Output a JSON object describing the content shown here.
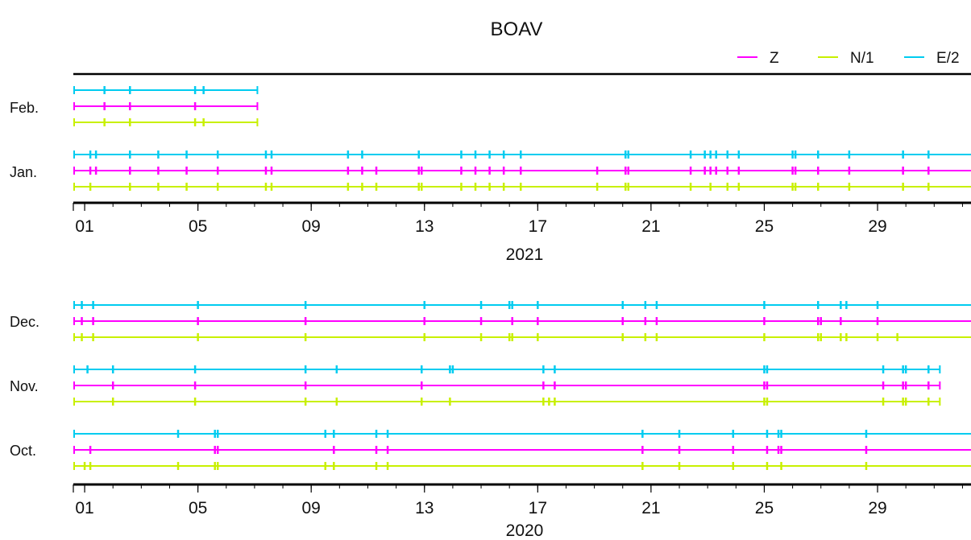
{
  "chart_data": {
    "type": "timeline",
    "title": "BOAV",
    "legend": {
      "placement": "top-right",
      "items": [
        {
          "label": "Z",
          "color": "#ff00ff"
        },
        {
          "label": "N/1",
          "color": "#c8f000"
        },
        {
          "label": "E/2",
          "color": "#00ccf0"
        }
      ]
    },
    "panels": [
      {
        "id": "panel-2021",
        "year_label": "2021",
        "x_ticks": [
          "01",
          "05",
          "09",
          "13",
          "17",
          "21",
          "25",
          "29"
        ],
        "x_tick_days": [
          1,
          5,
          9,
          13,
          17,
          21,
          25,
          29
        ],
        "x_range_days": [
          0.6,
          32.3
        ],
        "months": [
          {
            "label": "Feb.",
            "end_day": 7.1,
            "series": [
              {
                "name": "E/2",
                "color": "#00ccf0",
                "gaps": [
                  1.7,
                  2.6,
                  4.9,
                  5.2
                ]
              },
              {
                "name": "Z",
                "color": "#ff00ff",
                "gaps": [
                  1.7,
                  2.6,
                  4.9
                ]
              },
              {
                "name": "N/1",
                "color": "#c8f000",
                "gaps": [
                  1.7,
                  2.6,
                  4.9,
                  5.2
                ]
              }
            ]
          },
          {
            "label": "Jan.",
            "end_day": 32.3,
            "series": [
              {
                "name": "E/2",
                "color": "#00ccf0",
                "gaps": [
                  1.2,
                  1.4,
                  2.6,
                  3.6,
                  4.6,
                  5.7,
                  7.4,
                  7.6,
                  10.3,
                  10.8,
                  12.8,
                  14.3,
                  14.8,
                  15.3,
                  15.8,
                  16.4,
                  20.1,
                  20.2,
                  22.4,
                  22.9,
                  23.1,
                  23.3,
                  23.7,
                  24.1,
                  26.0,
                  26.1,
                  26.9,
                  28.0,
                  29.9,
                  30.8
                ]
              },
              {
                "name": "Z",
                "color": "#ff00ff",
                "gaps": [
                  1.2,
                  1.4,
                  2.6,
                  3.6,
                  4.6,
                  5.7,
                  7.4,
                  7.6,
                  10.3,
                  10.8,
                  11.3,
                  12.8,
                  12.9,
                  14.3,
                  14.8,
                  15.3,
                  15.8,
                  16.4,
                  19.1,
                  20.1,
                  20.2,
                  22.4,
                  22.9,
                  23.1,
                  23.3,
                  23.7,
                  24.1,
                  26.0,
                  26.1,
                  26.9,
                  28.0,
                  29.9,
                  30.8
                ]
              },
              {
                "name": "N/1",
                "color": "#c8f000",
                "gaps": [
                  1.2,
                  2.6,
                  3.6,
                  4.6,
                  5.7,
                  7.4,
                  7.6,
                  10.3,
                  10.8,
                  11.3,
                  12.8,
                  12.9,
                  14.3,
                  14.8,
                  15.3,
                  15.8,
                  16.4,
                  19.1,
                  20.1,
                  20.2,
                  22.4,
                  23.1,
                  23.7,
                  24.1,
                  26.0,
                  26.1,
                  26.9,
                  28.0,
                  29.9,
                  30.8
                ]
              }
            ]
          }
        ]
      },
      {
        "id": "panel-2020",
        "year_label": "2020",
        "x_ticks": [
          "01",
          "05",
          "09",
          "13",
          "17",
          "21",
          "25",
          "29"
        ],
        "x_tick_days": [
          1,
          5,
          9,
          13,
          17,
          21,
          25,
          29
        ],
        "x_range_days": [
          0.6,
          32.3
        ],
        "months": [
          {
            "label": "Dec.",
            "end_day": 32.3,
            "series": [
              {
                "name": "E/2",
                "color": "#00ccf0",
                "gaps": [
                  0.9,
                  1.3,
                  5.0,
                  8.8,
                  13.0,
                  15.0,
                  16.0,
                  16.1,
                  17.0,
                  20.0,
                  20.8,
                  21.2,
                  25.0,
                  26.9,
                  27.7,
                  27.9,
                  29.0
                ]
              },
              {
                "name": "Z",
                "color": "#ff00ff",
                "gaps": [
                  0.9,
                  1.3,
                  5.0,
                  8.8,
                  13.0,
                  15.0,
                  16.1,
                  17.0,
                  20.0,
                  20.8,
                  21.2,
                  25.0,
                  26.9,
                  27.0,
                  27.7,
                  29.0
                ]
              },
              {
                "name": "N/1",
                "color": "#c8f000",
                "gaps": [
                  0.9,
                  1.3,
                  5.0,
                  8.8,
                  13.0,
                  15.0,
                  16.0,
                  16.1,
                  17.0,
                  20.0,
                  20.8,
                  21.2,
                  25.0,
                  26.9,
                  27.0,
                  27.7,
                  27.9,
                  29.0,
                  29.7
                ]
              }
            ]
          },
          {
            "label": "Nov.",
            "end_day": 31.2,
            "series": [
              {
                "name": "E/2",
                "color": "#00ccf0",
                "gaps": [
                  1.1,
                  2.0,
                  4.9,
                  8.8,
                  9.9,
                  12.9,
                  13.9,
                  14.0,
                  17.2,
                  17.6,
                  25.0,
                  25.1,
                  29.2,
                  29.9,
                  30.0,
                  30.8
                ]
              },
              {
                "name": "Z",
                "color": "#ff00ff",
                "gaps": [
                  2.0,
                  4.9,
                  8.8,
                  12.9,
                  17.2,
                  17.6,
                  25.0,
                  25.1,
                  29.2,
                  29.9,
                  30.0,
                  30.8
                ]
              },
              {
                "name": "N/1",
                "color": "#c8f000",
                "gaps": [
                  2.0,
                  4.9,
                  8.8,
                  9.9,
                  12.9,
                  13.9,
                  17.2,
                  17.4,
                  17.6,
                  25.0,
                  25.1,
                  29.2,
                  29.9,
                  30.0,
                  30.8
                ]
              }
            ]
          },
          {
            "label": "Oct.",
            "end_day": 32.3,
            "series": [
              {
                "name": "E/2",
                "color": "#00ccf0",
                "gaps": [
                  4.3,
                  5.6,
                  5.7,
                  9.5,
                  9.8,
                  11.3,
                  11.7,
                  20.7,
                  22.0,
                  23.9,
                  25.1,
                  25.5,
                  25.6,
                  28.6
                ]
              },
              {
                "name": "Z",
                "color": "#ff00ff",
                "gaps": [
                  1.2,
                  5.6,
                  5.7,
                  9.8,
                  11.3,
                  11.7,
                  20.7,
                  22.0,
                  23.9,
                  25.1,
                  25.5,
                  25.6,
                  28.6
                ]
              },
              {
                "name": "N/1",
                "color": "#c8f000",
                "gaps": [
                  1.0,
                  1.2,
                  4.3,
                  5.6,
                  5.7,
                  9.5,
                  9.8,
                  11.3,
                  11.7,
                  20.7,
                  22.0,
                  23.9,
                  25.1,
                  25.6,
                  28.6
                ]
              }
            ]
          }
        ]
      }
    ]
  }
}
